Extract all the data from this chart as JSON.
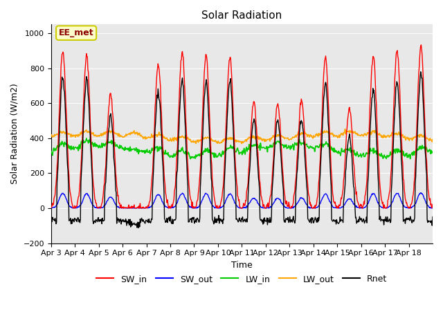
{
  "title": "Solar Radiation",
  "xlabel": "Time",
  "ylabel": "Solar Radiation (W/m2)",
  "ylim": [
    -200,
    1050
  ],
  "yticks": [
    -200,
    0,
    200,
    400,
    600,
    800,
    1000
  ],
  "date_labels": [
    "Apr 3",
    "Apr 4",
    "Apr 5",
    "Apr 6",
    "Apr 7",
    "Apr 8",
    "Apr 9",
    "Apr 10",
    "Apr 11",
    "Apr 12",
    "Apr 13",
    "Apr 14",
    "Apr 15",
    "Apr 16",
    "Apr 17",
    "Apr 18"
  ],
  "annotation_text": "EE_met",
  "annotation_color": "#8B0000",
  "annotation_bg": "#FFFFCC",
  "annotation_border": "#CCCC00",
  "bg_color": "#E8E8E8",
  "line_colors": {
    "SW_in": "#FF0000",
    "SW_out": "#0000FF",
    "LW_in": "#00CC00",
    "LW_out": "#FFA500",
    "Rnet": "#000000"
  },
  "legend_labels": [
    "SW_in",
    "SW_out",
    "LW_in",
    "LW_out",
    "Rnet"
  ]
}
